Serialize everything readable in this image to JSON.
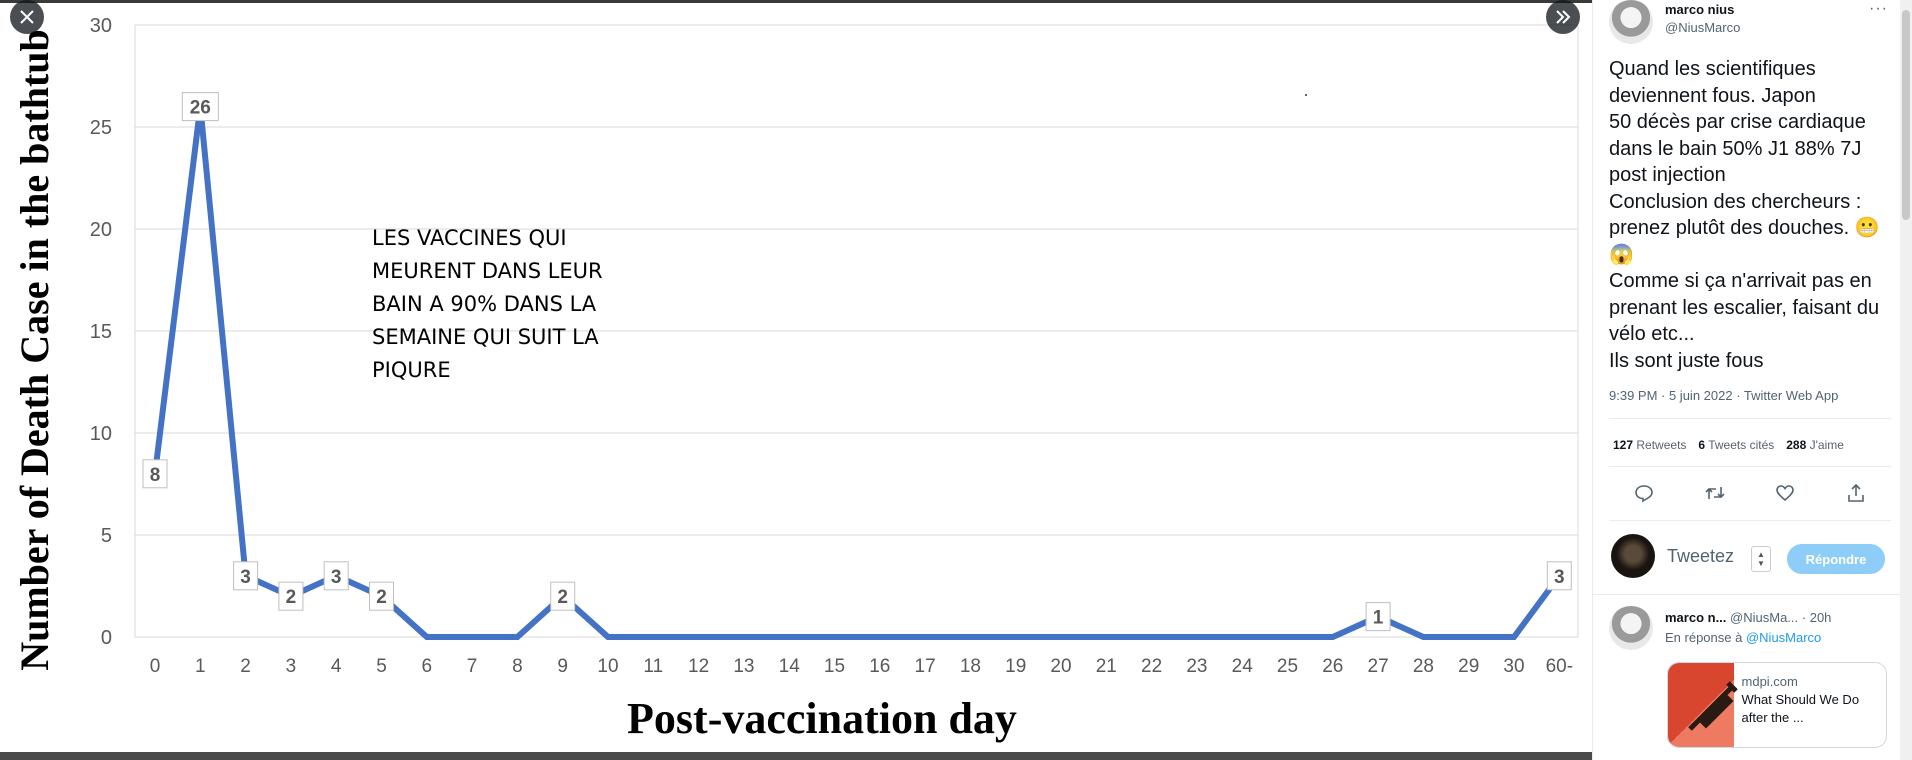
{
  "viewer": {
    "close_icon": "close-icon",
    "next_icon": "double-chevron-right-icon",
    "overlay_text": "LES VACCINES  QUI\nMEURENT DANS LEUR\nBAIN A 90% DANS LA\nSEMAINE QUI SUIT LA\nPIQURE"
  },
  "chart_data": {
    "type": "line",
    "title": "",
    "xlabel": "Post-vaccination day",
    "ylabel": "Number of Death Case in the bathtub",
    "categories": [
      "0",
      "1",
      "2",
      "3",
      "4",
      "5",
      "6",
      "7",
      "8",
      "9",
      "10",
      "11",
      "12",
      "13",
      "14",
      "15",
      "16",
      "17",
      "18",
      "19",
      "20",
      "21",
      "22",
      "23",
      "24",
      "25",
      "26",
      "27",
      "28",
      "29",
      "30",
      "60-"
    ],
    "values": [
      8,
      26,
      3,
      2,
      3,
      2,
      0,
      0,
      0,
      2,
      0,
      0,
      0,
      0,
      0,
      0,
      0,
      0,
      0,
      0,
      0,
      0,
      0,
      0,
      0,
      0,
      0,
      1,
      0,
      0,
      0,
      3
    ],
    "labeled_indices": [
      0,
      1,
      2,
      3,
      4,
      5,
      9,
      27,
      31
    ],
    "yticks": [
      "0",
      "5",
      "10",
      "15",
      "20",
      "25",
      "30"
    ],
    "ylim": [
      0,
      30
    ],
    "grid": "horizontal",
    "line_color": "#4472c4"
  },
  "tweet": {
    "author_name": "marco nius",
    "author_handle": "@NiusMarco",
    "text": "Quand les scientifiques deviennent fous. Japon\n50 décès par crise cardiaque dans le bain 50% J1 88% 7J post injection\nConclusion des chercheurs : prenez plutôt des douches. 😬😱\nComme si ça n'arrivait pas en prenant les escalier, faisant du vélo etc...\nIls sont juste fous",
    "meta": "9:39 PM · 5 juin 2022 · Twitter Web App",
    "retweets_count": "127",
    "retweets_label": "Retweets",
    "quotes_count": "6",
    "quotes_label": "Tweets cités",
    "likes_count": "288",
    "likes_label": "J'aime"
  },
  "reply_box": {
    "placeholder": "Tweetez",
    "button_label": "Répondre"
  },
  "reply_tweet": {
    "name": "marco n...",
    "handle": "@NiusMa...",
    "time": "· 20h",
    "in_reply_prefix": "En réponse à",
    "in_reply_handle": "@NiusMarco",
    "card_domain": "mdpi.com",
    "card_title": "What Should We Do after the ..."
  }
}
